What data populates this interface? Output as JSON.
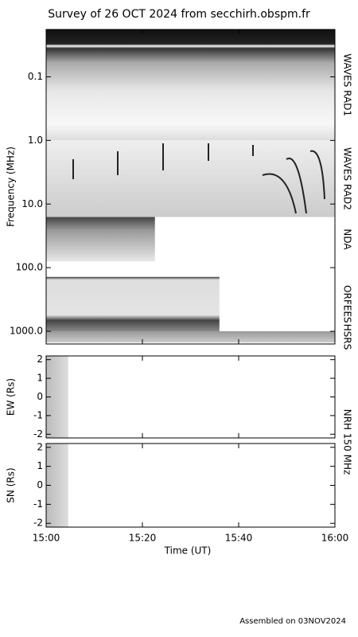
{
  "title": "Survey of 26 OCT 2024 from secchirh.obspm.fr",
  "footer": "Assembled on 03NOV2024",
  "x_axis": {
    "xlabel": "Time (UT)",
    "xlim": [
      900,
      960
    ],
    "xticks": [
      {
        "value": 900,
        "label": "15:00"
      },
      {
        "value": 920,
        "label": "15:20"
      },
      {
        "value": 940,
        "label": "15:40"
      },
      {
        "value": 960,
        "label": "16:00"
      }
    ]
  },
  "nrh_label": "NRH 150 MHz",
  "chart_data": [
    {
      "type": "spectrogram",
      "ylabel": "Frequency (MHz)",
      "ylog": true,
      "yinverted": true,
      "ylim": [
        0.018,
        1585
      ],
      "yticks": [
        0.1,
        {
          "value": 1,
          "label": "1.0"
        },
        {
          "value": 10,
          "label": "10.0"
        },
        {
          "value": 100,
          "label": "100.0"
        },
        {
          "value": 1000,
          "label": "1000.0"
        }
      ],
      "instruments": [
        {
          "name": "WAVES RAD1",
          "freq_range": [
            0.018,
            1
          ],
          "time_range": [
            900,
            960
          ],
          "color": "url(#g-rad1)"
        },
        {
          "name": "WAVES RAD2",
          "freq_range": [
            1,
            16
          ],
          "time_range": [
            900,
            960
          ],
          "color": "url(#g-rad2)"
        },
        {
          "name": "NDA",
          "freq_range": [
            16,
            80
          ],
          "time_range": [
            900,
            922.6
          ],
          "color": "url(#g-nda)"
        },
        {
          "name": "ORFEES",
          "freq_range": [
            140,
            1000
          ],
          "time_range": [
            900,
            936
          ],
          "color": "url(#g-orf)"
        },
        {
          "name": "HSRS",
          "freq_range": [
            1000,
            1500
          ],
          "time_range": [
            900,
            960
          ],
          "color": "url(#g-hsrs)"
        }
      ]
    },
    {
      "type": "heatmap",
      "ylabel": "EW (Rs)",
      "ylim": [
        -2.2,
        2.2
      ],
      "yticks": [
        -2,
        -1,
        0,
        1,
        2
      ],
      "time_range": [
        900,
        904.6
      ],
      "color": "url(#g-nrh)"
    },
    {
      "type": "heatmap",
      "ylabel": "SN (Rs)",
      "ylim": [
        -2.2,
        2.2
      ],
      "yticks": [
        -2,
        -1,
        0,
        1,
        2
      ],
      "time_range": [
        900,
        904.6
      ],
      "color": "url(#g-nrh)"
    }
  ]
}
